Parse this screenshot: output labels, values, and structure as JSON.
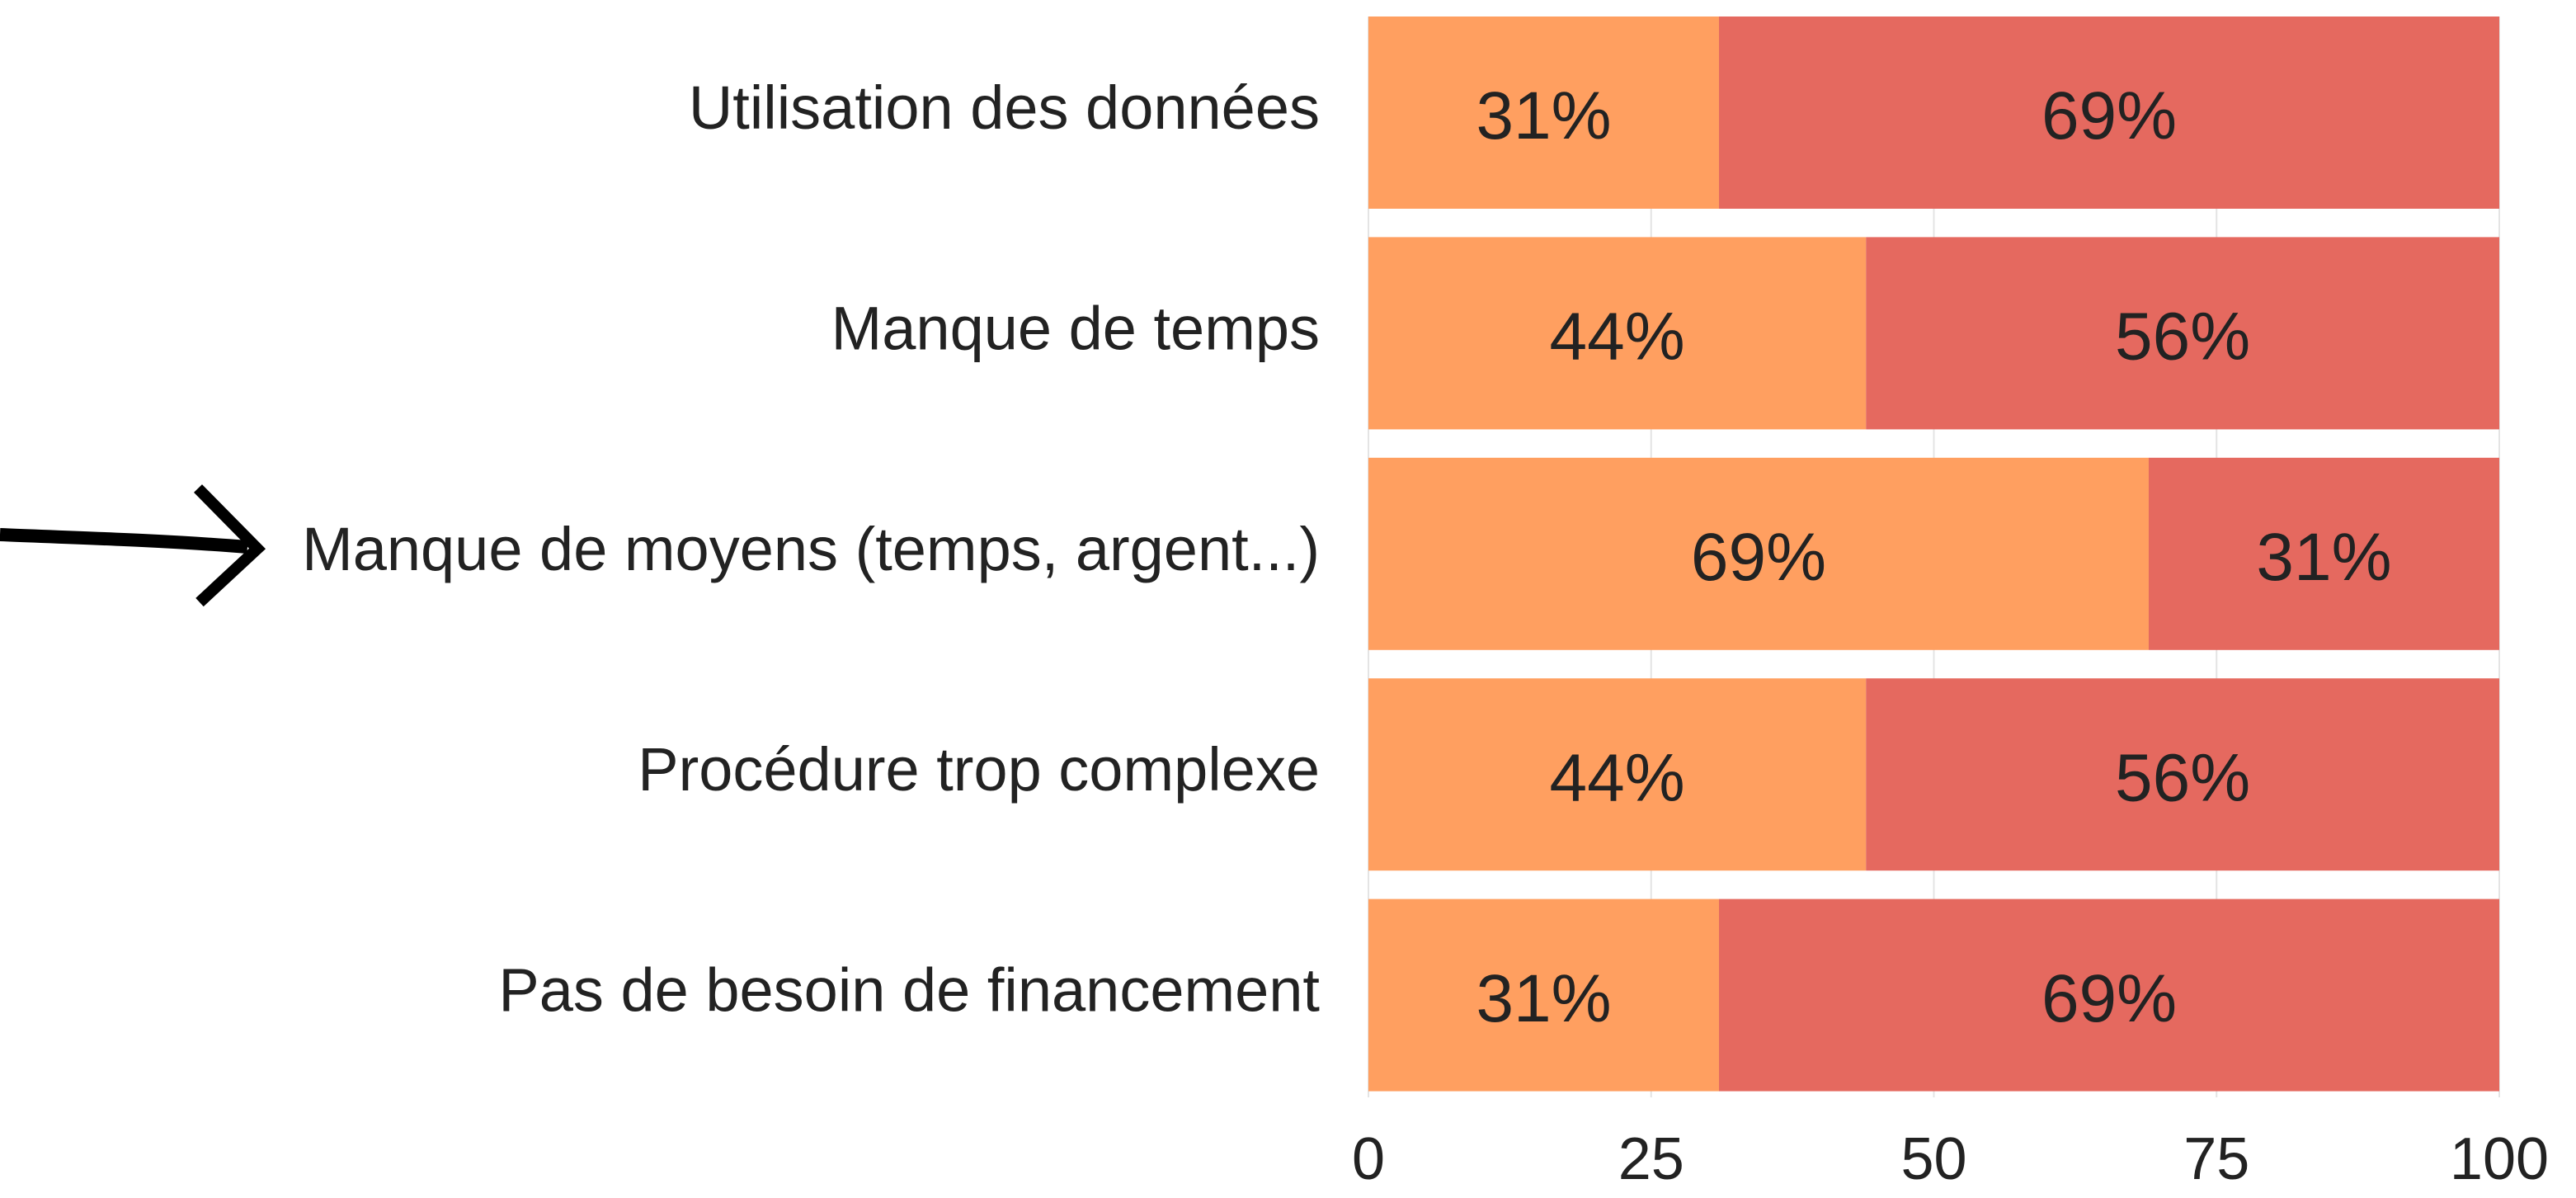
{
  "chart_data": {
    "type": "stacked-barh",
    "categories": [
      "Utilisation des données",
      "Manque de temps",
      "Manque de moyens (temps, argent...)",
      "Procédure trop complexe",
      "Pas de besoin de financement"
    ],
    "series": [
      {
        "color": "#ff9f60",
        "values": [
          31,
          44,
          69,
          44,
          31
        ],
        "value_labels": [
          "31%",
          "44%",
          "69%",
          "44%",
          "31%"
        ]
      },
      {
        "color": "#e5695f",
        "values": [
          69,
          56,
          31,
          56,
          69
        ],
        "value_labels": [
          "69%",
          "56%",
          "31%",
          "56%",
          "69%"
        ]
      }
    ],
    "xlim": [
      0,
      100
    ],
    "xticks": [
      0,
      25,
      50,
      75,
      100
    ],
    "grid": true
  }
}
